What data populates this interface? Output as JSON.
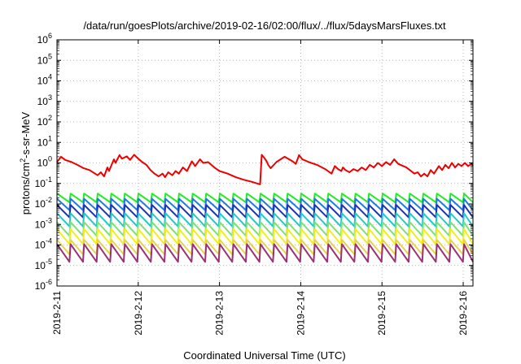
{
  "chart_data": {
    "type": "line",
    "title": "/data/run/goesPlots/archive/2019-02-16/02:00/flux/../flux/5daysMarsFluxes.txt",
    "xlabel": "Coordinated Universal Time (UTC)",
    "ylabel_base": "protons/cm",
    "ylabel_sup": "2",
    "ylabel_rest": "-s-sr-MeV",
    "yscale": "log",
    "ylim": [
      1e-06,
      1000000.0
    ],
    "xlim": [
      0,
      5.12
    ],
    "grid": true,
    "x_ticks": [
      {
        "value": 0,
        "label": "2019-2-11"
      },
      {
        "value": 1,
        "label": "2019-2-12"
      },
      {
        "value": 2,
        "label": "2019-2-13"
      },
      {
        "value": 3,
        "label": "2019-2-14"
      },
      {
        "value": 4,
        "label": "2019-2-15"
      },
      {
        "value": 5,
        "label": "2019-2-16"
      }
    ],
    "y_ticks": [
      {
        "exp": "-6"
      },
      {
        "exp": "-5"
      },
      {
        "exp": "-4"
      },
      {
        "exp": "-3"
      },
      {
        "exp": "-2"
      },
      {
        "exp": "-1"
      },
      {
        "exp": "0"
      },
      {
        "exp": "1"
      },
      {
        "exp": "2"
      },
      {
        "exp": "3"
      },
      {
        "exp": "4"
      },
      {
        "exp": "5"
      },
      {
        "exp": "6"
      }
    ],
    "series": [
      {
        "color": "#ee0000",
        "x": [
          0,
          0.05,
          0.1,
          0.18,
          0.25,
          0.33,
          0.4,
          0.5,
          0.54,
          0.58,
          0.62,
          0.64,
          0.7,
          0.72,
          0.77,
          0.8,
          0.86,
          0.9,
          0.95,
          1.0,
          1.05,
          1.1,
          1.15,
          1.2,
          1.25,
          1.3,
          1.33,
          1.37,
          1.42,
          1.46,
          1.5,
          1.55,
          1.6,
          1.66,
          1.7,
          1.76,
          1.8,
          1.86,
          1.9,
          1.95,
          2.0,
          2.1,
          2.2,
          2.3,
          2.4,
          2.5,
          2.52,
          2.55,
          2.58,
          2.6,
          2.63,
          2.7,
          2.8,
          2.9,
          2.94,
          2.98,
          3.02,
          3.1,
          3.2,
          3.3,
          3.38,
          3.42,
          3.46,
          3.5,
          3.52,
          3.55,
          3.6,
          3.65,
          3.7,
          3.75,
          3.8,
          3.85,
          3.9,
          3.95,
          4.0,
          4.05,
          4.1,
          4.15,
          4.2,
          4.3,
          4.4,
          4.44,
          4.48,
          4.52,
          4.56,
          4.6,
          4.64,
          4.7,
          4.74,
          4.78,
          4.82,
          4.86,
          4.9,
          4.94,
          4.98,
          5.02,
          5.06,
          5.1,
          5.12
        ],
        "y": [
          1.1,
          2.0,
          1.4,
          1.1,
          0.8,
          0.55,
          0.45,
          0.25,
          0.35,
          0.22,
          0.6,
          0.4,
          1.5,
          1.0,
          2.4,
          1.6,
          2.1,
          1.4,
          2.5,
          1.6,
          1.1,
          0.8,
          0.45,
          0.3,
          0.22,
          0.3,
          0.2,
          0.35,
          0.25,
          0.4,
          0.3,
          0.6,
          0.4,
          1.2,
          0.7,
          1.5,
          1.0,
          1.1,
          0.8,
          0.55,
          0.4,
          0.3,
          0.2,
          0.15,
          0.12,
          0.09,
          2.5,
          1.8,
          1.2,
          0.8,
          0.55,
          1.1,
          2.0,
          1.2,
          0.9,
          2.4,
          1.5,
          1.1,
          0.8,
          0.5,
          0.3,
          0.7,
          0.5,
          0.4,
          0.6,
          0.45,
          0.35,
          0.5,
          0.4,
          0.6,
          0.45,
          0.8,
          0.6,
          1.0,
          0.7,
          1.1,
          0.8,
          1.5,
          0.9,
          0.6,
          0.3,
          0.35,
          0.22,
          0.3,
          0.22,
          0.45,
          0.3,
          0.7,
          0.45,
          0.8,
          0.55,
          1.0,
          0.6,
          0.9,
          0.7,
          1.0,
          0.7,
          0.9,
          0.75
        ]
      },
      {
        "color": "#22ee22",
        "sawtooth": {
          "period": 0.167,
          "peak": 0.032,
          "trough": 0.012
        }
      },
      {
        "color": "#1e7be6",
        "sawtooth": {
          "period": 0.167,
          "peak": 0.018,
          "trough": 0.005
        }
      },
      {
        "color": "#1d33b3",
        "sawtooth": {
          "period": 0.167,
          "peak": 0.009,
          "trough": 0.0022
        }
      },
      {
        "color": "#22c9c9",
        "sawtooth": {
          "period": 0.167,
          "peak": 0.0035,
          "trough": 0.0008
        }
      },
      {
        "color": "#7fe07a",
        "sawtooth": {
          "period": 0.167,
          "peak": 0.0013,
          "trough": 0.00028
        }
      },
      {
        "color": "#f2ee1a",
        "sawtooth": {
          "period": 0.167,
          "peak": 0.0006,
          "trough": 0.00011
        }
      },
      {
        "color": "#e7d34a",
        "sawtooth": {
          "period": 0.167,
          "peak": 0.00018,
          "trough": 3.5e-05
        }
      },
      {
        "color": "#9c3276",
        "sawtooth": {
          "period": 0.167,
          "peak": 0.00011,
          "trough": 1.5e-05
        }
      }
    ]
  }
}
